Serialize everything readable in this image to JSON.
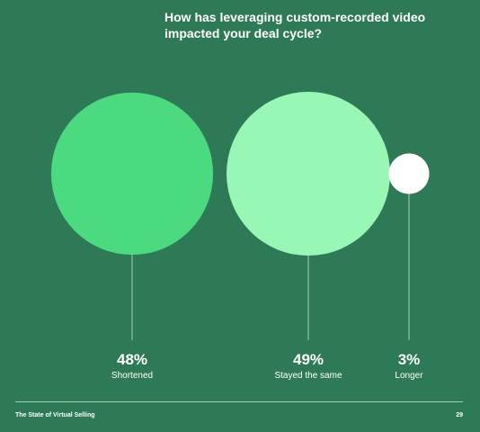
{
  "question": "How has leveraging custom-recorded video impacted your deal cycle?",
  "chart_data": {
    "type": "bubble",
    "title": "How has leveraging custom-recorded video impacted your deal cycle?",
    "categories": [
      "Shortened",
      "Stayed the same",
      "Longer"
    ],
    "values": [
      48,
      49,
      3
    ],
    "value_labels": [
      "48%",
      "49%",
      "3%"
    ],
    "unit": "%",
    "colors": [
      "#4cda80",
      "#98f7b5",
      "#ffffff"
    ]
  },
  "colors": {
    "background": "#2e7a57",
    "connector": "#9fd3b6"
  },
  "footer": {
    "title": "The State of Virtual Selling",
    "page_number": "29"
  }
}
